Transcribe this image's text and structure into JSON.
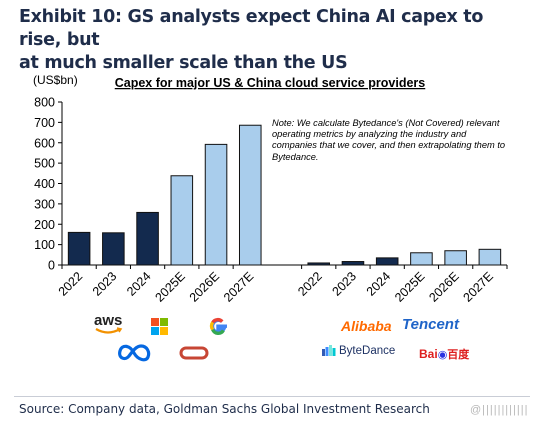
{
  "exhibit": {
    "title_line1": "Exhibit 10: GS analysts expect China AI capex to rise, but",
    "title_line2": "at much smaller scale than the US"
  },
  "chart_data": {
    "type": "bar",
    "title": "Capex for major US & China cloud service providers",
    "ylabel": "(US$bn)",
    "ylim": [
      0,
      800
    ],
    "yticks": [
      0,
      100,
      200,
      300,
      400,
      500,
      600,
      700,
      800
    ],
    "grid": false,
    "note": "Note: We calculate Bytedance's (Not Covered) relevant operating metrics by analyzing the industry and companies that we cover, and then extrapolating them to Bytedance.",
    "groups": [
      {
        "name": "US",
        "categories": [
          "2022",
          "2023",
          "2024",
          "2025E",
          "2026E",
          "2027E"
        ],
        "values": [
          160,
          158,
          258,
          438,
          592,
          686
        ]
      },
      {
        "name": "China",
        "categories": [
          "2022",
          "2023",
          "2024",
          "2025E",
          "2026E",
          "2027E"
        ],
        "values": [
          10,
          17,
          35,
          60,
          70,
          77
        ]
      }
    ],
    "colors": {
      "actual": "#132a4e",
      "estimate": "#a9cdec",
      "bar_edge": "#111111"
    }
  },
  "logos": {
    "us": {
      "aws": "aws",
      "microsoft": "microsoft-logo",
      "google": "G",
      "meta": "meta-logo",
      "oracle": "oracle-logo"
    },
    "china": {
      "alibaba": "Alibaba",
      "tencent": "Tencent",
      "bytedance": "ByteDance",
      "baidu_prefix": "Bai",
      "baidu_suffix": "百度"
    }
  },
  "source": "Source: Company data, Goldman Sachs Global Investment Research",
  "watermark": "@||||||||||||"
}
